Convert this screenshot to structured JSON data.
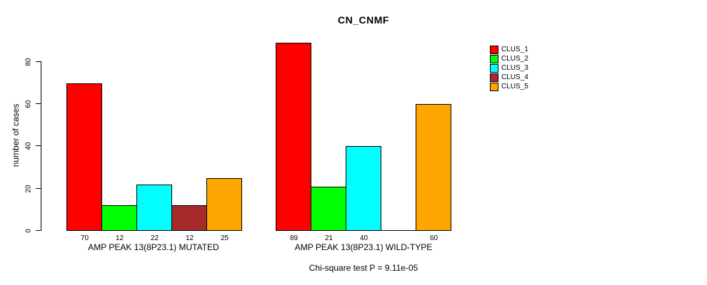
{
  "chart_data": {
    "type": "bar",
    "title": "CN_CNMF",
    "ylabel": "number of cases",
    "xlabel": "",
    "ylim": [
      0,
      89
    ],
    "yticks": [
      0,
      20,
      40,
      60,
      80
    ],
    "grid": false,
    "legend_position": "top-right",
    "series_names": [
      "CLUS_1",
      "CLUS_2",
      "CLUS_3",
      "CLUS_4",
      "CLUS_5"
    ],
    "series_colors": [
      "#FF0000",
      "#00FF00",
      "#00FFFF",
      "#A52A2A",
      "#FFA500"
    ],
    "groups": [
      {
        "label": "AMP PEAK 13(8P23.1) MUTATED",
        "values": [
          70,
          12,
          22,
          12,
          25
        ],
        "value_labels": [
          "70",
          "12",
          "22",
          "12",
          "25"
        ]
      },
      {
        "label": "AMP PEAK 13(8P23.1) WILD-TYPE",
        "values": [
          89,
          21,
          40,
          0,
          60
        ],
        "value_labels": [
          "89",
          "21",
          "40",
          "",
          "60"
        ]
      }
    ],
    "annotation": "Chi-square test P = 9.11e-05",
    "axis_color": "#000000",
    "background_color": "#FFFFFF"
  }
}
